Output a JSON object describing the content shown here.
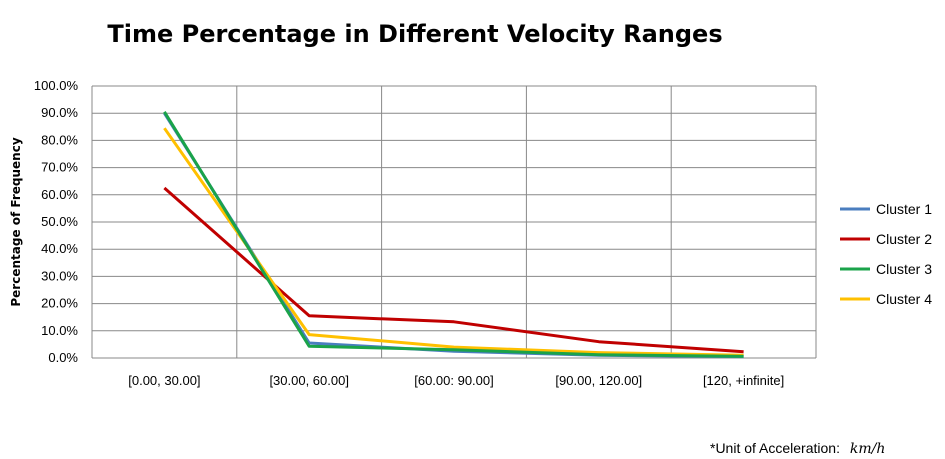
{
  "chart_data": {
    "type": "line",
    "title": "Time Percentage in Different Velocity Ranges",
    "ylabel": "Percentage of Frequency",
    "xlabel": "",
    "categories": [
      "[0.00, 30.00]",
      "[30.00, 60.00]",
      "[60.00: 90.00]",
      "[90.00, 120.00]",
      "[120,  +infinite]"
    ],
    "ylim": [
      0,
      100
    ],
    "yticks": [
      "0.0%",
      "10.0%",
      "20.0%",
      "30.0%",
      "40.0%",
      "50.0%",
      "60.0%",
      "70.0%",
      "80.0%",
      "90.0%",
      "100.0%"
    ],
    "grid": true,
    "legend_position": "right",
    "series": [
      {
        "name": "Cluster 1",
        "color": "#4a7ebf",
        "values": [
          90.0,
          5.5,
          2.5,
          1.0,
          0.5
        ]
      },
      {
        "name": "Cluster 2",
        "color": "#c00000",
        "values": [
          62.5,
          15.5,
          13.3,
          6.0,
          2.3
        ]
      },
      {
        "name": "Cluster 3",
        "color": "#1aa34a",
        "values": [
          90.5,
          4.3,
          3.0,
          1.2,
          0.6
        ]
      },
      {
        "name": "Cluster 4",
        "color": "#ffc000",
        "values": [
          84.5,
          8.6,
          4.0,
          2.0,
          1.0
        ]
      }
    ],
    "annotation": {
      "prefix": "*Unit of Acceleration:",
      "unit": "km/h"
    }
  }
}
